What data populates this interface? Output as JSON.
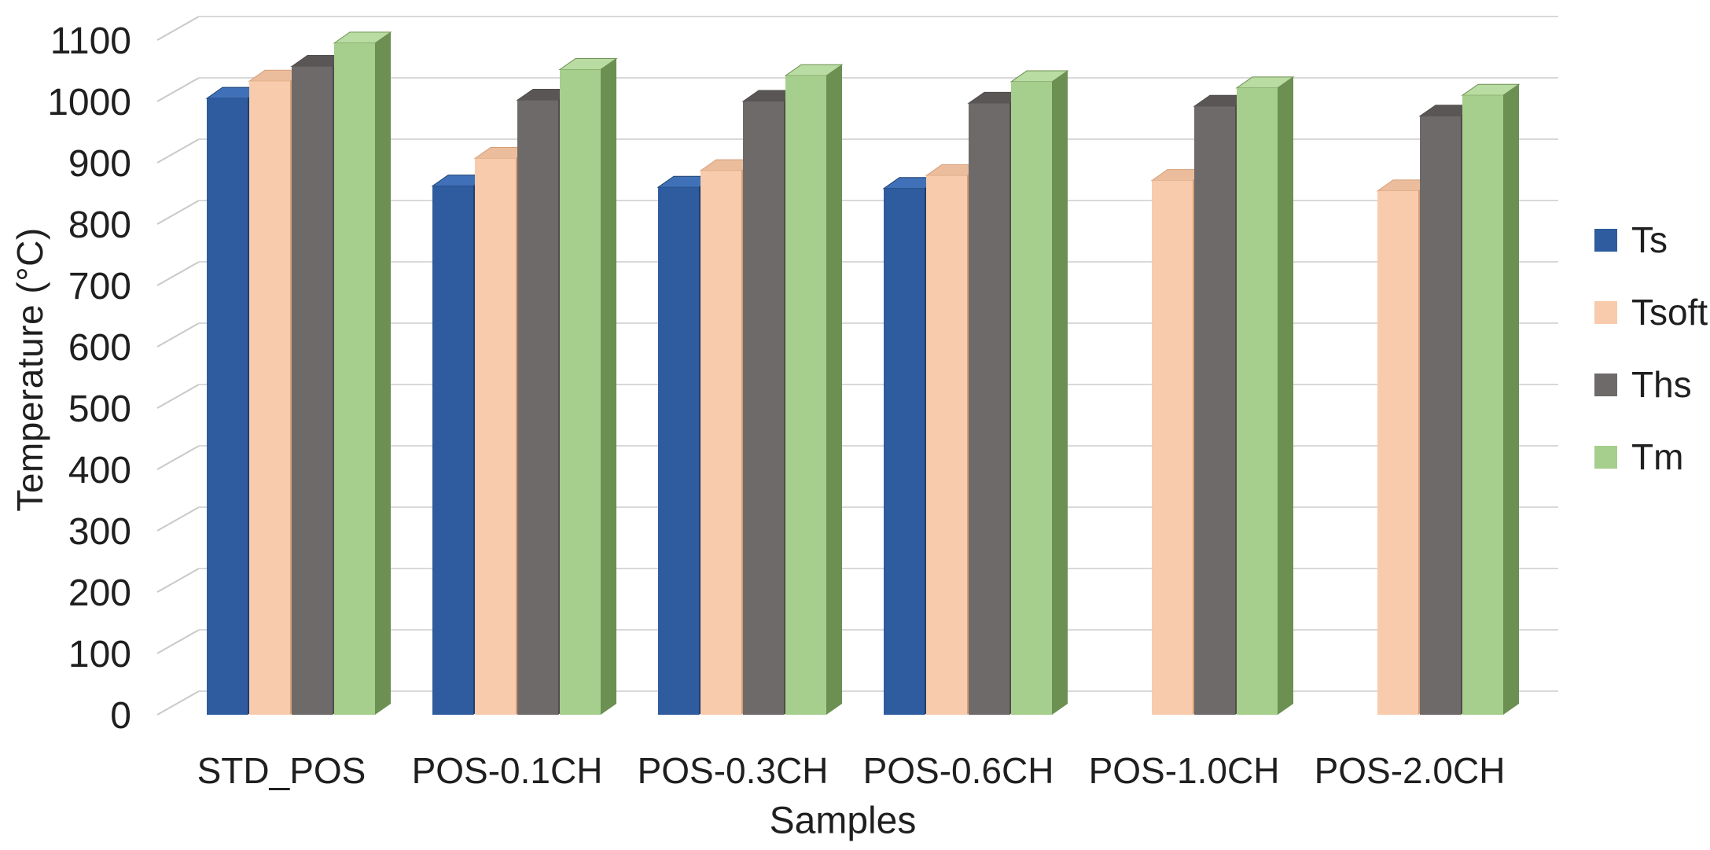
{
  "chart_data": {
    "type": "bar",
    "style": "3d-column",
    "title": "",
    "xlabel": "Samples",
    "ylabel": "Temperature (°C)",
    "ylim": [
      0,
      1100
    ],
    "ytick_step": 100,
    "grid": true,
    "legend_position": "right",
    "background_color": "#ffffff",
    "gridline_color": "#d9d9d9",
    "leader_line_color": "#c9c9c9",
    "text_color": "#1f1f1f",
    "categories": [
      "STD_POS",
      "POS-0.1CH",
      "POS-0.3CH",
      "POS-0.6CH",
      "POS-1.0CH",
      "POS-2.0CH"
    ],
    "series": [
      {
        "name": "Ts",
        "color": "#2E5C9E",
        "color_top": "#4071B8",
        "color_side": "#1E4070",
        "values": [
          1005,
          862,
          860,
          858,
          null,
          null
        ]
      },
      {
        "name": "Tsoft",
        "color": "#F8CBAD",
        "color_top": "#EBBD9C",
        "color_side": "#D69F77",
        "values": [
          1033,
          907,
          887,
          879,
          871,
          854
        ]
      },
      {
        "name": "Ths",
        "color": "#6E6A6A",
        "color_top": "#5A5656",
        "color_side": "#504C4C",
        "values": [
          1057,
          1002,
          1000,
          997,
          992,
          976
        ]
      },
      {
        "name": "Tm",
        "color": "#A6CE8C",
        "color_top": "#B9DCA2",
        "color_side": "#6C8F52",
        "values": [
          1095,
          1052,
          1042,
          1032,
          1022,
          1010
        ]
      }
    ]
  }
}
